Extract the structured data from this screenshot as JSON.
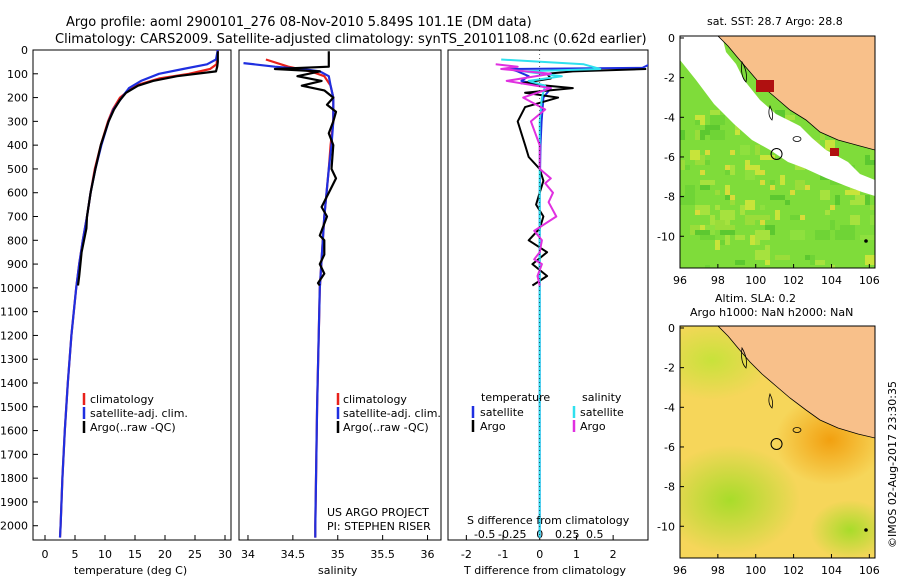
{
  "header": {
    "line1": "Argo profile: aoml 2900101_276 08-Nov-2010 5.849S 101.1E (DM data)",
    "line2": "Climatology: CARS2009. Satellite-adjusted climatology: synTS_20101108.nc (0.62d earlier)"
  },
  "colors": {
    "climatology": "#e8201a",
    "satellite": "#1f2fe0",
    "argo": "#000000",
    "s_satellite": "#2fe0ee",
    "s_argo": "#e030e0"
  },
  "depth_ticks": [
    0,
    100,
    200,
    300,
    400,
    500,
    600,
    700,
    800,
    900,
    1000,
    1100,
    1200,
    1300,
    1400,
    1500,
    1600,
    1700,
    1800,
    1900,
    2000
  ],
  "chart_data": [
    {
      "type": "line",
      "name": "temperature",
      "xlabel": "temperature (deg C)",
      "xlim": [
        -2,
        31
      ],
      "ylim": [
        2060,
        0
      ],
      "xticks": [
        0,
        5,
        10,
        15,
        20,
        25,
        30
      ],
      "legend": [
        "climatology",
        "satellite-adj. clim.",
        "Argo(..raw -QC)"
      ],
      "series": [
        {
          "name": "climatology",
          "depth": [
            0,
            60,
            80,
            100,
            120,
            150,
            180,
            200,
            250,
            300,
            400,
            500,
            600,
            700,
            800,
            900,
            1000,
            1200,
            1400,
            1600,
            1800,
            2000,
            2050
          ],
          "values": [
            28.8,
            28.6,
            27.5,
            24,
            19,
            15,
            13.5,
            12.5,
            11.3,
            10.5,
            9.3,
            8.3,
            7.6,
            7,
            6.3,
            5.7,
            5.2,
            4.4,
            3.8,
            3.3,
            2.9,
            2.6,
            2.5
          ]
        },
        {
          "name": "satellite-adj. clim.",
          "depth": [
            0,
            40,
            60,
            80,
            100,
            130,
            160,
            200,
            250,
            300,
            400,
            500,
            600,
            700,
            800,
            900,
            1000,
            1200,
            1400,
            1600,
            1800,
            2000,
            2050
          ],
          "values": [
            28.8,
            28.5,
            27,
            23,
            19,
            16,
            14,
            12.8,
            11.4,
            10.6,
            9.4,
            8.4,
            7.6,
            7,
            6.3,
            5.7,
            5.2,
            4.4,
            3.8,
            3.3,
            2.9,
            2.6,
            2.5
          ]
        },
        {
          "name": "Argo",
          "depth": [
            5,
            30,
            50,
            70,
            90,
            110,
            130,
            150,
            180,
            210,
            250,
            300,
            400,
            500,
            600,
            700,
            750,
            800,
            850,
            900,
            950,
            990
          ],
          "values": [
            28.8,
            28.8,
            28.8,
            28.7,
            28.5,
            22,
            18,
            15.5,
            13.5,
            12.5,
            11.5,
            10.6,
            9.3,
            8.4,
            7.6,
            7,
            6.9,
            6.5,
            6.1,
            5.9,
            5.7,
            5.5
          ]
        }
      ]
    },
    {
      "type": "line",
      "name": "salinity",
      "xlabel": "salinity",
      "xlim": [
        33.9,
        36.15
      ],
      "ylim": [
        2060,
        0
      ],
      "xticks": [
        34,
        34.5,
        35,
        35.5,
        36
      ],
      "legend": [
        "climatology",
        "satellite-adj. clim.",
        "Argo(..raw -QC)"
      ],
      "series": [
        {
          "name": "climatology",
          "depth": [
            40,
            70,
            90,
            110,
            150,
            200,
            300,
            400,
            500,
            700,
            1000,
            1500,
            2000,
            2050
          ],
          "values": [
            34.2,
            34.45,
            34.7,
            34.85,
            34.92,
            34.95,
            34.95,
            34.92,
            34.9,
            34.85,
            34.8,
            34.77,
            34.75,
            34.75
          ]
        },
        {
          "name": "satellite-adj. clim.",
          "depth": [
            55,
            70,
            80,
            90,
            110,
            150,
            200,
            300,
            400,
            500,
            700,
            1000,
            1500,
            2000,
            2050
          ],
          "values": [
            33.95,
            34.3,
            34.6,
            34.8,
            34.9,
            34.92,
            34.95,
            34.95,
            34.93,
            34.9,
            34.85,
            34.8,
            34.77,
            34.75,
            34.75
          ]
        },
        {
          "name": "Argo",
          "depth": [
            5,
            40,
            70,
            80,
            90,
            110,
            130,
            150,
            170,
            200,
            230,
            260,
            300,
            350,
            400,
            500,
            540,
            600,
            660,
            700,
            780,
            800,
            860,
            900,
            940,
            980,
            990
          ],
          "values": [
            34.9,
            34.9,
            34.9,
            34.3,
            34.8,
            34.55,
            34.82,
            34.6,
            34.85,
            34.95,
            34.88,
            34.98,
            34.95,
            34.9,
            34.95,
            34.93,
            34.98,
            34.9,
            34.82,
            34.88,
            34.8,
            34.85,
            34.85,
            34.8,
            34.85,
            34.78,
            34.8
          ]
        }
      ],
      "project": [
        "US ARGO PROJECT",
        "PI: STEPHEN RISER"
      ]
    },
    {
      "type": "line",
      "name": "difference from climatology",
      "xlabel": "T difference from climatology",
      "top_label": "S difference from climatology",
      "xlim": [
        -2.5,
        2.95
      ],
      "ylim": [
        2060,
        0
      ],
      "xticks": [
        -2,
        -1,
        0,
        1,
        2
      ],
      "s_ticks": [
        -0.5,
        -0.25,
        0,
        0.25,
        0.5
      ],
      "legend_headers": [
        "temperature",
        "salinity"
      ],
      "legend": [
        "satellite",
        "Argo",
        "satellite",
        "Argo"
      ],
      "series": [
        {
          "name": "temperature satellite",
          "depth": [
            60,
            75,
            80,
            90,
            110,
            130,
            160,
            200,
            300,
            400,
            600,
            800,
            1000,
            1200,
            1500,
            1800,
            2000,
            2050
          ],
          "values": [
            3,
            2.8,
            -0.8,
            -0.6,
            -0.3,
            -0.5,
            0.3,
            0.1,
            0.05,
            0.02,
            0,
            0,
            0,
            0,
            0,
            0,
            0,
            0
          ]
        },
        {
          "name": "temperature Argo",
          "depth": [
            80,
            90,
            100,
            120,
            140,
            160,
            180,
            200,
            240,
            300,
            350,
            400,
            450,
            500,
            550,
            600,
            650,
            700,
            750,
            800,
            850,
            900,
            950,
            990
          ],
          "values": [
            2.9,
            0.9,
            0.2,
            0.3,
            -0.5,
            0.9,
            -0.4,
            0.5,
            -0.4,
            -0.6,
            -0.5,
            -0.4,
            -0.3,
            0,
            0.1,
            0,
            -0.1,
            0.1,
            0,
            -0.3,
            0.2,
            -0.2,
            0.2,
            -0.2
          ]
        },
        {
          "name": "salinity satellite",
          "depth": [
            40,
            60,
            80,
            90,
            110,
            130,
            150,
            200,
            300,
            400,
            600,
            800,
            1000,
            1200,
            1500,
            1800,
            2000,
            2050
          ],
          "values": [
            -0.35,
            0.4,
            0.55,
            -0.15,
            0.2,
            -0.1,
            0.05,
            0.02,
            0,
            0,
            0,
            0,
            0,
            0,
            0,
            0,
            0,
            0
          ]
        },
        {
          "name": "salinity Argo",
          "depth": [
            60,
            70,
            80,
            100,
            130,
            160,
            200,
            250,
            300,
            400,
            500,
            540,
            560,
            600,
            640,
            700,
            760,
            800,
            850,
            880,
            900,
            950,
            990
          ],
          "values": [
            -0.4,
            -0.2,
            -0.35,
            0.1,
            -0.3,
            0.1,
            -0.15,
            0.05,
            -0.08,
            0,
            0,
            0.1,
            0.05,
            0.12,
            0.08,
            0.15,
            -0.05,
            0.02,
            0,
            -0.05,
            0.02,
            -0.02,
            0
          ]
        }
      ]
    }
  ],
  "maps": [
    {
      "title": "sat. SST: 28.7  Argo: 28.8",
      "xticks": [
        96,
        98,
        100,
        102,
        104,
        106
      ],
      "yticks": [
        0,
        -2,
        -4,
        -6,
        -8,
        -10
      ],
      "argo_lon": 101.1,
      "argo_lat": -5.85
    },
    {
      "title_line1": "Altim. SLA: 0.2",
      "title_line2": "Argo h1000: NaN h2000: NaN",
      "xticks": [
        96,
        98,
        100,
        102,
        104,
        106
      ],
      "yticks": [
        0,
        -2,
        -4,
        -6,
        -8,
        -10
      ],
      "argo_lon": 101.1,
      "argo_lat": -5.85
    }
  ],
  "footer": {
    "timestamp": "©IMOS 02-Aug-2017 23:30:35"
  }
}
